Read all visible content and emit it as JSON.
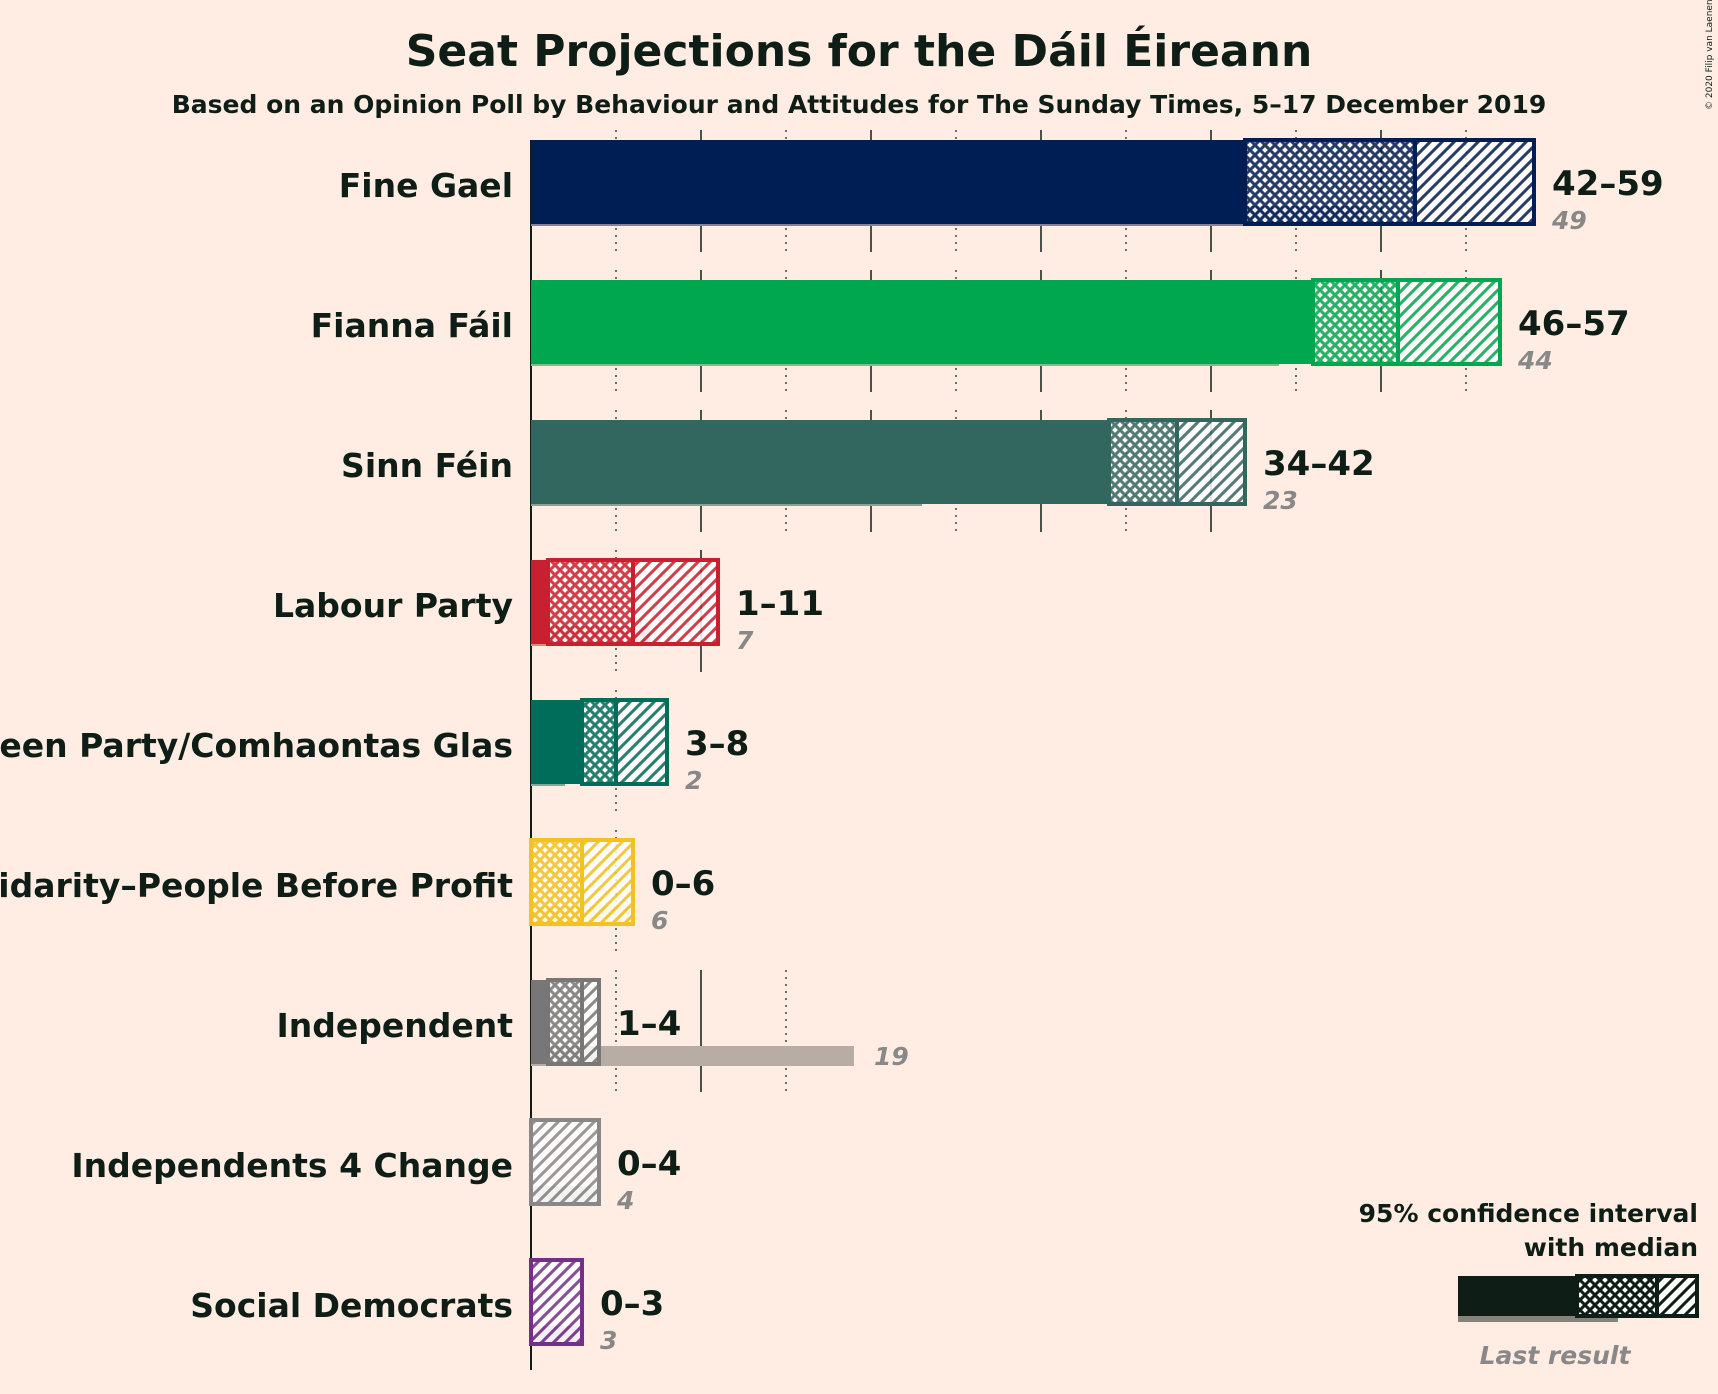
{
  "copyright": "© 2020 Filip van Laenen",
  "chart_data": {
    "type": "bar",
    "title": "Seat Projections for the Dáil Éireann",
    "subtitle": "Based on an Opinion Poll by Behaviour and Attitudes for The Sunday Times, 5–17 December 2019",
    "xlim": [
      0,
      60
    ],
    "gridlines": [
      5,
      10,
      15,
      20,
      25,
      30,
      35,
      40,
      45,
      50,
      55
    ],
    "legend": {
      "line1": "95% confidence interval",
      "line2": "with median",
      "last_result": "Last result",
      "position": "bottom-right"
    },
    "parties": [
      {
        "name": "Fine Gael",
        "color": "#001E54",
        "last_color": "#868193",
        "low": 42,
        "median": 52,
        "high": 59,
        "range_label": "42–59",
        "last_result": 49
      },
      {
        "name": "Fianna Fáil",
        "color": "#00A74E",
        "last_color": "#80BA8F",
        "low": 46,
        "median": 51,
        "high": 57,
        "range_label": "46–57",
        "last_result": 44
      },
      {
        "name": "Sinn Féin",
        "color": "#326760",
        "last_color": "#929C90",
        "low": 34,
        "median": 38,
        "high": 42,
        "range_label": "34–42",
        "last_result": 23
      },
      {
        "name": "Labour Party",
        "color": "#C8202E",
        "last_color": "#D98B89",
        "low": 1,
        "median": 6,
        "high": 11,
        "range_label": "1–11",
        "last_result": 7
      },
      {
        "name": "Green Party/Comhaontas Glas",
        "color": "#006D5B",
        "last_color": "#80A997",
        "low": 3,
        "median": 5,
        "high": 8,
        "range_label": "3–8",
        "last_result": 2
      },
      {
        "name": "Solidarity–People Before Profit",
        "color": "#F1C222",
        "last_color": "#F4D280",
        "low": 0,
        "median": 3,
        "high": 6,
        "range_label": "0–6",
        "last_result": 6
      },
      {
        "name": "Independent",
        "color": "#777777",
        "last_color": "#B7ADA5",
        "low": 1,
        "median": 3,
        "high": 4,
        "range_label": "1–4",
        "last_result": 19
      },
      {
        "name": "Independents 4 Change",
        "color": "#888888",
        "last_color": "#C2B6B0",
        "low": 0,
        "median": 0,
        "high": 4,
        "range_label": "0–4",
        "last_result": 4
      },
      {
        "name": "Social Democrats",
        "color": "#752F8B",
        "last_color": "#BA8FAA",
        "low": 0,
        "median": 0,
        "high": 3,
        "range_label": "0–3",
        "last_result": 3
      }
    ]
  }
}
